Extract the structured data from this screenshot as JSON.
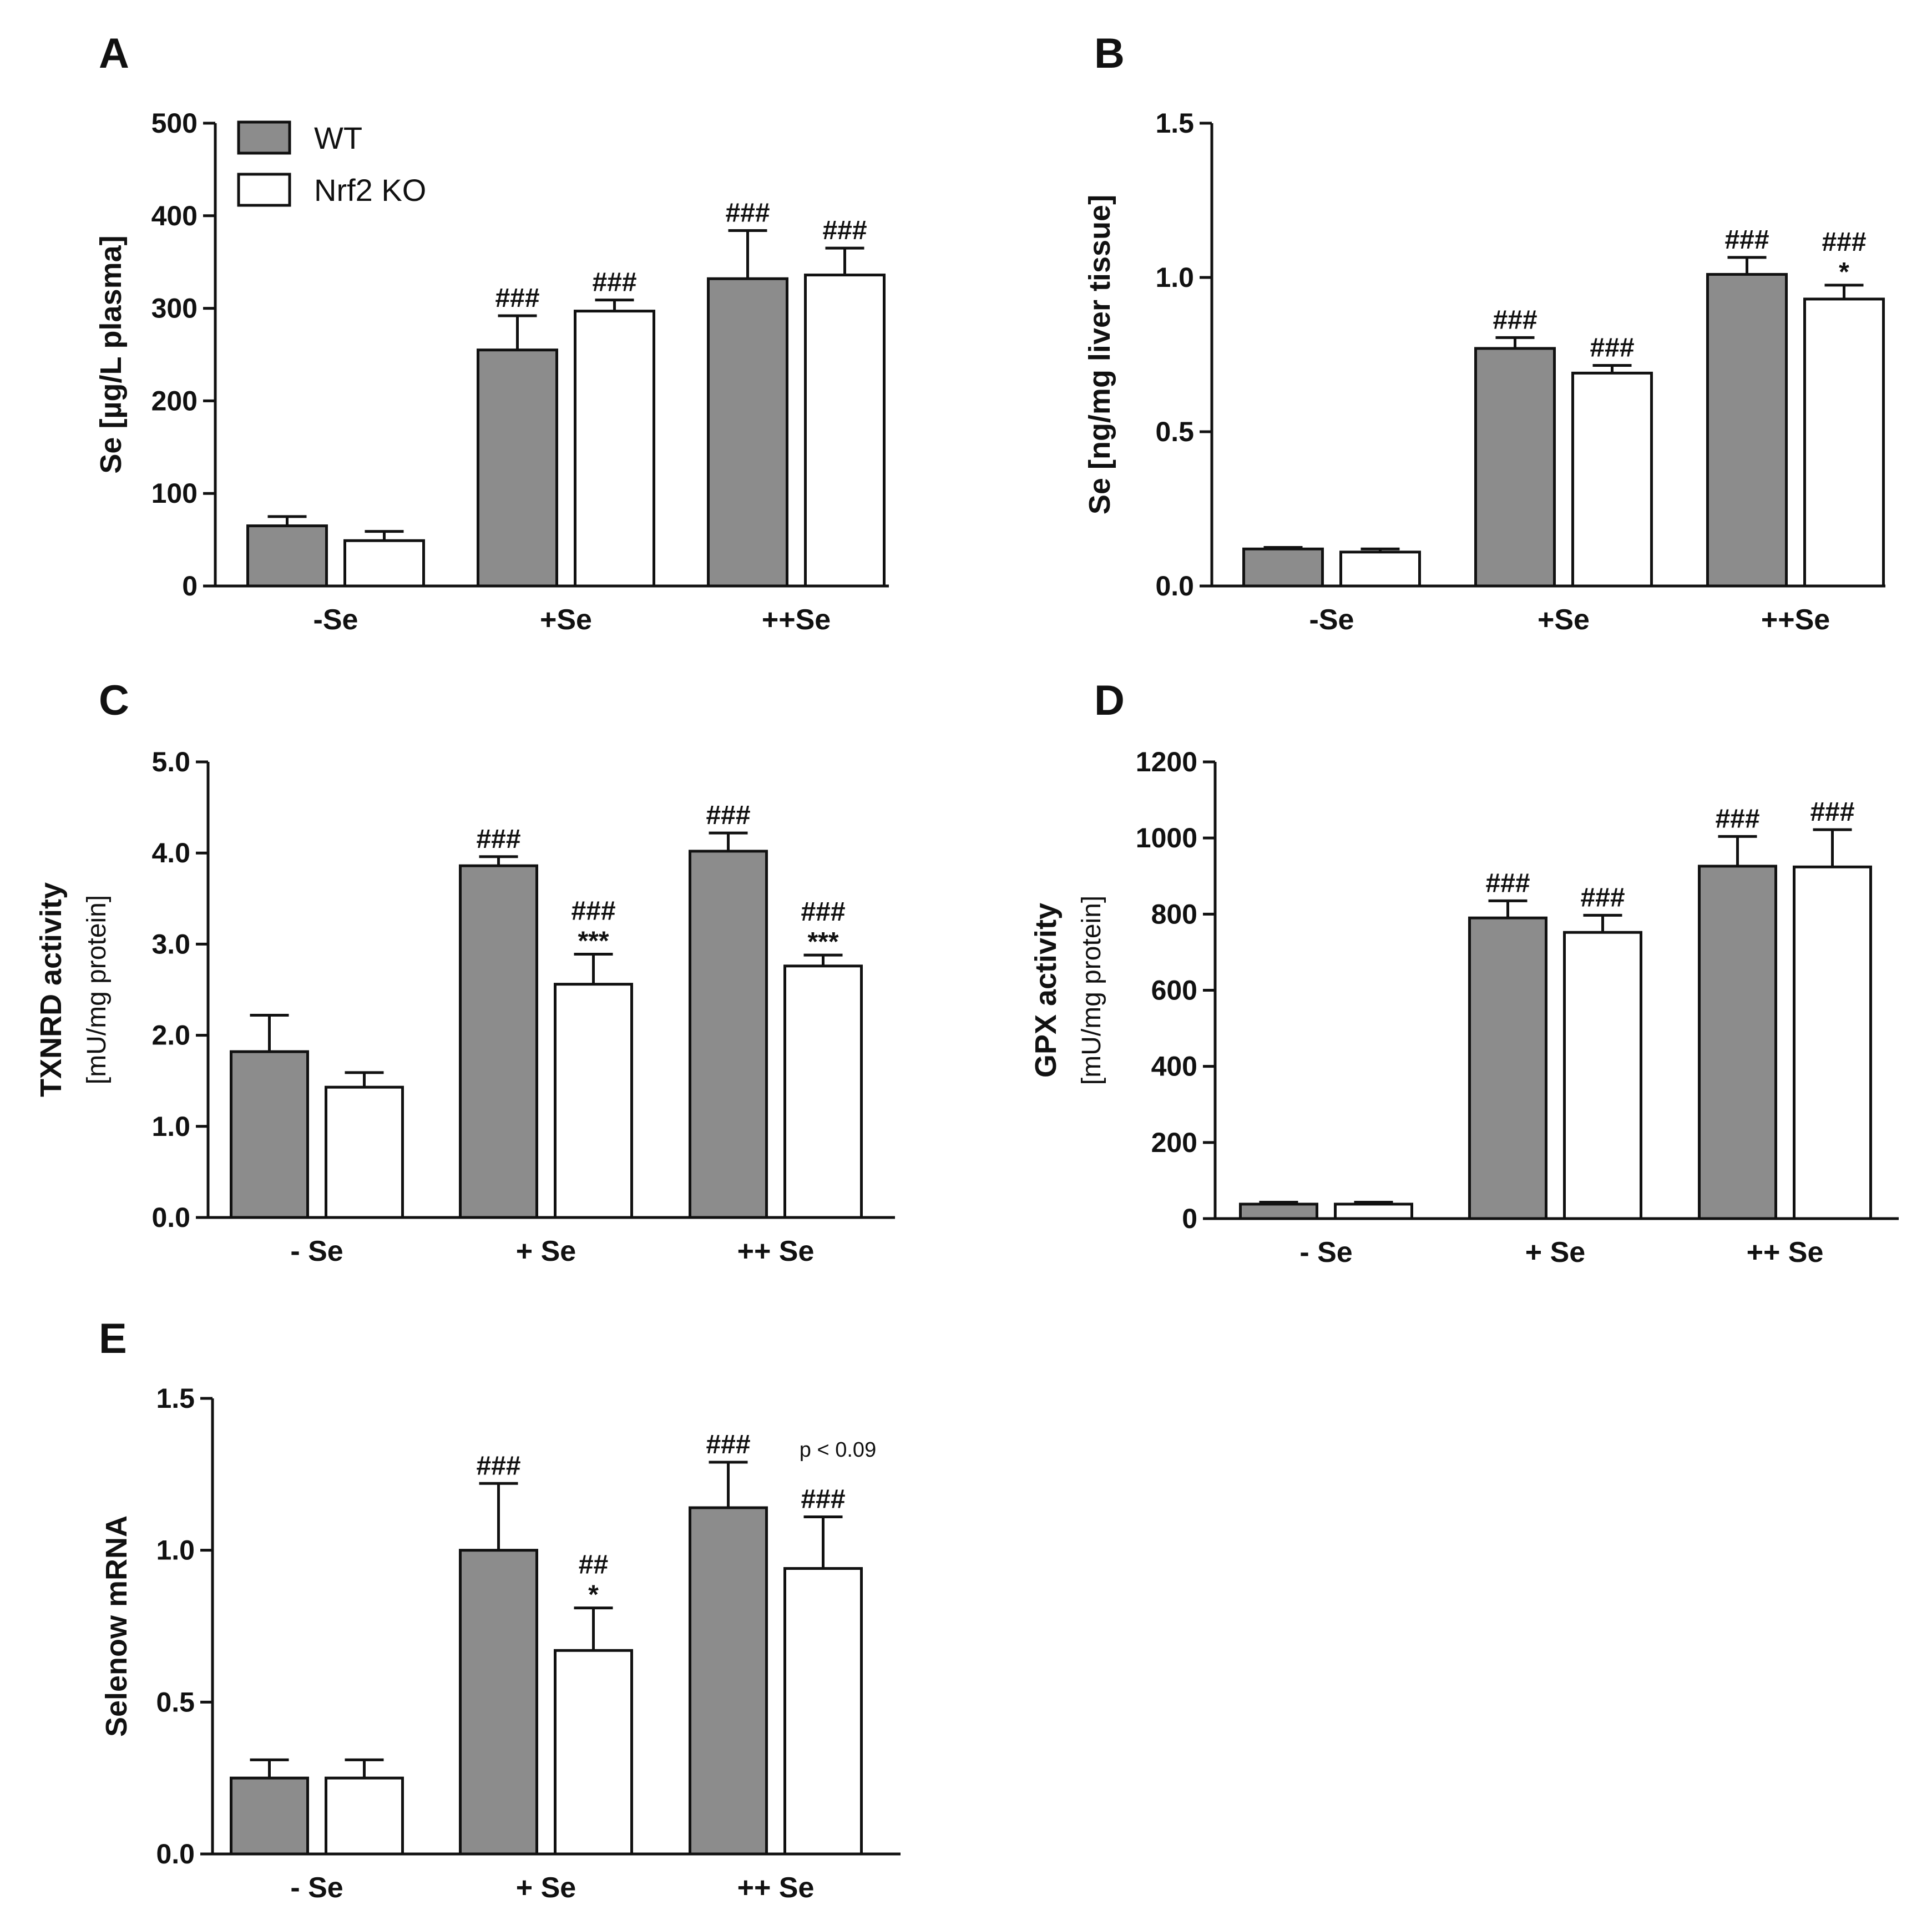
{
  "colors": {
    "wt": "#8c8c8c",
    "ko": "#ffffff",
    "stroke": "#111111"
  },
  "legend": {
    "wt": "WT",
    "ko": "Nrf2 KO"
  },
  "chart_data": [
    {
      "type": "bar",
      "panel": "A",
      "categories": [
        "-Se",
        "+Se",
        "++Se"
      ],
      "ylabel": "Se [µg/L plasma]",
      "ylabel_sub": "",
      "ylim": [
        0,
        500
      ],
      "yticks": [
        0,
        100,
        200,
        300,
        400,
        500
      ],
      "ytick_labels": [
        "0",
        "100",
        "200",
        "300",
        "400",
        "500"
      ],
      "series": [
        {
          "name": "WT",
          "values": [
            65,
            255,
            332
          ],
          "errors": [
            10,
            37,
            52
          ],
          "annotations": [
            [],
            [
              "###"
            ],
            [
              "###"
            ]
          ]
        },
        {
          "name": "Nrf2 KO",
          "values": [
            49,
            297,
            336
          ],
          "errors": [
            10,
            12,
            29
          ],
          "annotations": [
            [],
            [
              "###"
            ],
            [
              "###"
            ]
          ]
        }
      ]
    },
    {
      "type": "bar",
      "panel": "B",
      "categories": [
        "-Se",
        "+Se",
        "++Se"
      ],
      "ylabel": "Se [ng/mg liver tissue]",
      "ylabel_sub": "",
      "ylim": [
        0,
        1.5
      ],
      "yticks": [
        0,
        0.5,
        1.0,
        1.5
      ],
      "ytick_labels": [
        "0.0",
        "0.5",
        "1.0",
        "1.5"
      ],
      "series": [
        {
          "name": "WT",
          "values": [
            0.12,
            0.77,
            1.01
          ],
          "errors": [
            0.005,
            0.035,
            0.055
          ],
          "annotations": [
            [],
            [
              "###"
            ],
            [
              "###"
            ]
          ]
        },
        {
          "name": "Nrf2 KO",
          "values": [
            0.11,
            0.69,
            0.93
          ],
          "errors": [
            0.01,
            0.025,
            0.045
          ],
          "annotations": [
            [],
            [
              "###"
            ],
            [
              "*",
              "###"
            ]
          ]
        }
      ]
    },
    {
      "type": "bar",
      "panel": "C",
      "categories": [
        "- Se",
        "+ Se",
        "++ Se"
      ],
      "ylabel": "TXNRD activity",
      "ylabel_sub": "[mU/mg protein]",
      "ylim": [
        0,
        5.0
      ],
      "yticks": [
        0,
        1,
        2,
        3,
        4,
        5
      ],
      "ytick_labels": [
        "0.0",
        "1.0",
        "2.0",
        "3.0",
        "4.0",
        "5.0"
      ],
      "series": [
        {
          "name": "WT",
          "values": [
            1.82,
            3.86,
            4.02
          ],
          "errors": [
            0.4,
            0.1,
            0.2
          ],
          "annotations": [
            [],
            [
              "###"
            ],
            [
              "###"
            ]
          ]
        },
        {
          "name": "Nrf2 KO",
          "values": [
            1.43,
            2.56,
            2.76
          ],
          "errors": [
            0.16,
            0.33,
            0.12
          ],
          "annotations": [
            [],
            [
              "***",
              "###"
            ],
            [
              "***",
              "###"
            ]
          ]
        }
      ]
    },
    {
      "type": "bar",
      "panel": "D",
      "categories": [
        "- Se",
        "+ Se",
        "++ Se"
      ],
      "ylabel": "GPX activity",
      "ylabel_sub": "[mU/mg protein]",
      "ylim": [
        0,
        1200
      ],
      "yticks": [
        0,
        200,
        400,
        600,
        800,
        1000,
        1200
      ],
      "ytick_labels": [
        "0",
        "200",
        "400",
        "600",
        "800",
        "1000",
        "1200"
      ],
      "series": [
        {
          "name": "WT",
          "values": [
            38,
            790,
            926
          ],
          "errors": [
            5,
            45,
            78
          ],
          "annotations": [
            [],
            [
              "###"
            ],
            [
              "###"
            ]
          ]
        },
        {
          "name": "Nrf2 KO",
          "values": [
            38,
            752,
            924
          ],
          "errors": [
            5,
            45,
            98
          ],
          "annotations": [
            [],
            [
              "###"
            ],
            [
              "###"
            ]
          ]
        }
      ]
    },
    {
      "type": "bar",
      "panel": "E",
      "categories": [
        "- Se",
        "+ Se",
        "++ Se"
      ],
      "ylabel": "Selenow mRNA",
      "ylabel_sub": "",
      "ylim": [
        0,
        1.5
      ],
      "yticks": [
        0,
        0.5,
        1.0,
        1.5
      ],
      "ytick_labels": [
        "0.0",
        "0.5",
        "1.0",
        "1.5"
      ],
      "note": "p < 0.09",
      "series": [
        {
          "name": "WT",
          "values": [
            0.25,
            1.0,
            1.14
          ],
          "errors": [
            0.06,
            0.22,
            0.15
          ],
          "annotations": [
            [],
            [
              "###"
            ],
            [
              "###"
            ]
          ]
        },
        {
          "name": "Nrf2 KO",
          "values": [
            0.25,
            0.67,
            0.94
          ],
          "errors": [
            0.06,
            0.14,
            0.17
          ],
          "annotations": [
            [],
            [
              "*",
              "##"
            ],
            [
              "###"
            ]
          ]
        }
      ]
    }
  ]
}
